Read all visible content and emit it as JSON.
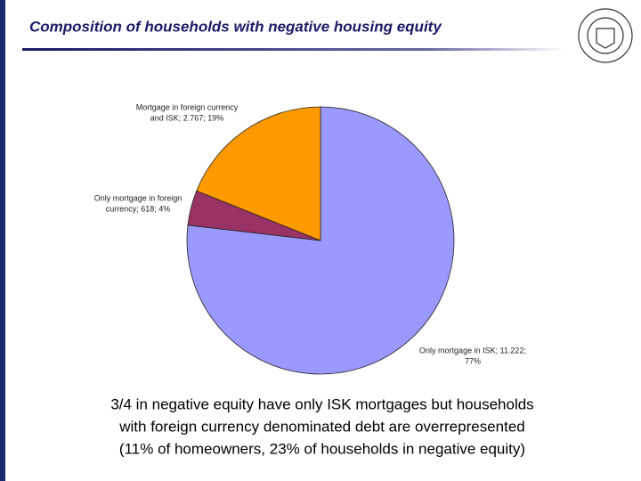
{
  "chart_data": {
    "type": "pie",
    "title": "Composition of households with negative housing equity",
    "values": [
      11222,
      618,
      2767
    ],
    "colors": [
      "#9999ff",
      "#993366",
      "#ff9900"
    ],
    "data_labels": [
      [
        "Only mortgage in ISK; 11.222;",
        "77%"
      ],
      [
        "Only mortgage in foreign",
        "currency; 618; 4%"
      ],
      [
        "Mortgage in foreign currency",
        "and ISK; 2.767; 19%"
      ]
    ],
    "annotations": [
      "3/4 in negative equity have only ISK mortgages but households",
      "with foreign currency denominated debt are overrepresented",
      "(11% of homeowners, 23% of households in negative equity)"
    ]
  }
}
